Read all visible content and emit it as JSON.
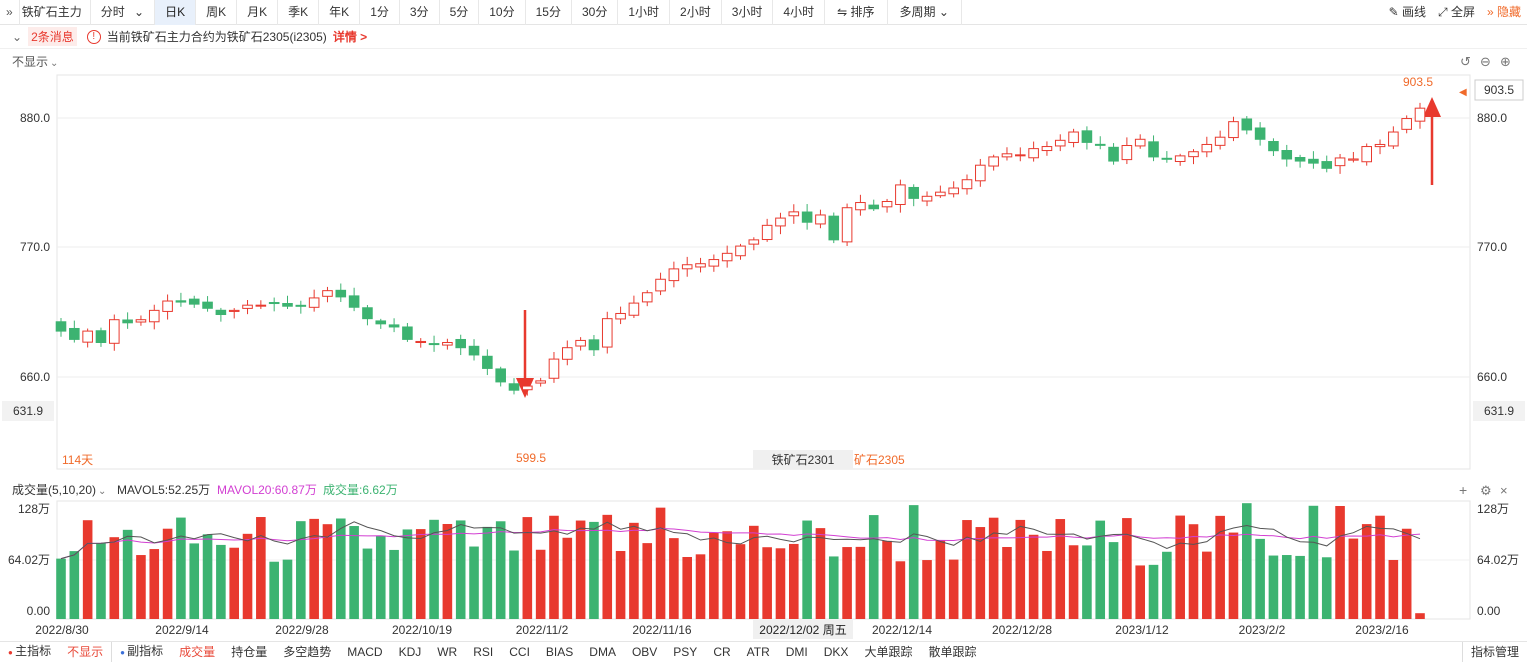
{
  "toolbar": {
    "symbol": "铁矿石主力",
    "periods": [
      "分时",
      "日K",
      "周K",
      "月K",
      "季K",
      "年K",
      "1分",
      "3分",
      "5分",
      "10分",
      "15分",
      "30分",
      "1小时",
      "2小时",
      "3小时",
      "4小时"
    ],
    "active_period": "日K",
    "sort_label": "排序",
    "multi_period_label": "多周期",
    "draw_label": "画线",
    "fullscreen_label": "全屏",
    "hide_label": "隐藏"
  },
  "msgbar": {
    "count_label": "2条消息",
    "message": "当前铁矿石主力合约为铁矿石2305(i2305)",
    "details_label": "详情 >"
  },
  "main_chart": {
    "display_toggle": "不显示",
    "price_labels": [
      "880.0",
      "770.0",
      "660.0"
    ],
    "current_price": "903.5",
    "current_left": "631.9",
    "current_right": "631.9",
    "high_label": "903.5",
    "low_label": "599.5",
    "days_label": "114天",
    "contract_a": "铁矿石2301",
    "contract_b": "矿石2305"
  },
  "volume_chart": {
    "title": "成交量(5,10,20)",
    "mavol5": "MAVOL5:52.25万",
    "mavol20": "MAVOL20:60.87万",
    "volume": "成交量:6.62万",
    "axis_labels": [
      "128万",
      "64.02万",
      "0.00"
    ]
  },
  "x_axis": {
    "labels": [
      "2022/8/30",
      "2022/9/14",
      "2022/9/28",
      "2022/10/19",
      "2022/11/2",
      "2022/11/16",
      "2022/12/14",
      "2022/12/28",
      "2023/1/12",
      "2023/2/2",
      "2023/2/16"
    ],
    "cursor_label": "2022/12/02 周五"
  },
  "bottom_tabs": {
    "items": [
      "主指标",
      "不显示",
      "副指标",
      "成交量",
      "持仓量",
      "多空趋势",
      "MACD",
      "KDJ",
      "WR",
      "RSI",
      "CCI",
      "BIAS",
      "DMA",
      "OBV",
      "PSY",
      "CR",
      "ATR",
      "DMI",
      "DKX",
      "大单跟踪",
      "散单跟踪"
    ],
    "manage_label": "指标管理"
  },
  "colors": {
    "up": "#e8392e",
    "down": "#3cb371",
    "accent": "#f06a2a",
    "mavol20": "#d23fd2",
    "mavol5": "#555555"
  },
  "chart_data": {
    "type": "candlestick",
    "close": [
      688,
      680,
      688,
      677,
      699,
      696,
      699,
      708,
      717,
      716,
      714,
      710,
      704,
      708,
      713,
      713,
      715,
      712,
      712,
      720,
      727,
      721,
      711,
      700,
      695,
      692,
      680,
      678,
      675,
      677,
      672,
      665,
      652,
      639,
      631,
      635,
      640,
      661,
      672,
      679,
      670,
      700,
      705,
      715,
      725,
      738,
      748,
      752,
      753,
      757,
      763,
      770,
      776,
      790,
      797,
      803,
      793,
      800,
      776,
      807,
      812,
      806,
      813,
      829,
      816,
      818,
      822,
      826,
      834,
      848,
      856,
      859,
      858,
      864,
      866,
      872,
      880,
      870,
      868,
      852,
      867,
      873,
      856,
      854,
      857,
      861,
      868,
      875,
      890,
      882,
      873,
      862,
      854,
      852,
      850,
      845,
      855,
      854,
      866,
      868,
      880,
      893,
      903
    ],
    "ylim": [
      555,
      935
    ]
  }
}
